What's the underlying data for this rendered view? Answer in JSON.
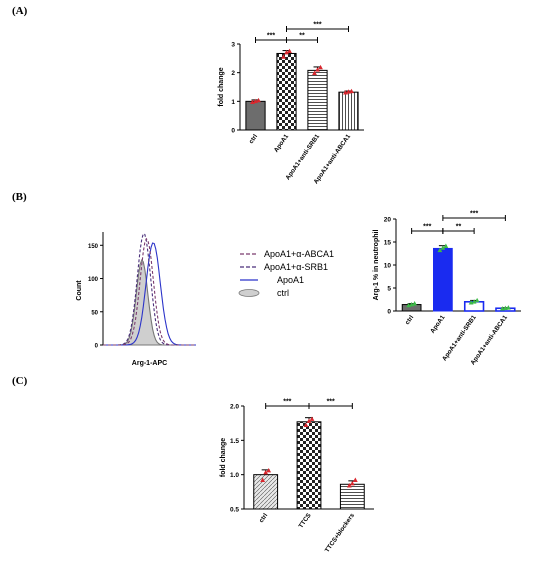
{
  "panels": {
    "a_label": "(A)",
    "b_label": "(B)",
    "c_label": "(C)"
  },
  "colors": {
    "dark_gray": "#6d6d6d",
    "red_points": "#d9272e",
    "blue": "#1a2bf0",
    "green_points": "#3dbb48",
    "purple_dash": "#7a3a6e",
    "dark_purple_dash": "#4a2f7a",
    "line_blue": "#2b33c9",
    "ctrl_fill": "#cfcfcf"
  },
  "chart_data": [
    {
      "id": "A",
      "type": "bar",
      "categories": [
        "ctrl",
        "ApoA1",
        "ApoA1+anti-SRB1",
        "ApoA1+anti-ABCA1"
      ],
      "values": [
        1.0,
        2.67,
        2.08,
        1.32
      ],
      "errors": [
        0.05,
        0.1,
        0.12,
        0.04
      ],
      "points": [
        [
          0.97,
          1.0,
          1.03
        ],
        [
          2.55,
          2.7,
          2.75
        ],
        [
          1.98,
          2.1,
          2.18
        ],
        [
          1.3,
          1.33,
          1.35
        ]
      ],
      "patterns": [
        "dark",
        "checker",
        "hlines",
        "vlines"
      ],
      "ylabel": "fold change",
      "ylim": [
        0,
        3
      ],
      "yticks": [
        "0",
        "1",
        "2",
        "3"
      ],
      "significance": [
        {
          "from": 0,
          "to": 1,
          "label": "***",
          "row": 0
        },
        {
          "from": 1,
          "to": 2,
          "label": "**",
          "row": 0
        },
        {
          "from": 1,
          "to": 3,
          "label": "***",
          "row": 1
        }
      ],
      "grid": false
    },
    {
      "id": "B-histogram",
      "type": "histogram",
      "xlabel": "Arg-1-APC",
      "ylabel": "Count",
      "ylim": [
        0,
        170
      ],
      "yticks": [
        "0",
        "50",
        "100",
        "150"
      ],
      "legend": [
        "ApoA1+α-ABCA1",
        "ApoA1+α-SRB1",
        "ApoA1",
        "ctrl"
      ],
      "series": [
        {
          "name": "ctrl",
          "peak_x": 0.42,
          "peak_y": 128,
          "width": 0.13
        },
        {
          "name": "ApoA1",
          "peak_x": 0.54,
          "peak_y": 154,
          "width": 0.16
        },
        {
          "name": "ApoA1+α-SRB1",
          "peak_x": 0.44,
          "peak_y": 168,
          "width": 0.15
        },
        {
          "name": "ApoA1+α-ABCA1",
          "peak_x": 0.47,
          "peak_y": 160,
          "width": 0.15
        }
      ]
    },
    {
      "id": "B",
      "type": "bar",
      "categories": [
        "ctrl",
        "ApoA1",
        "ApoA1+anti-SRB1",
        "ApoA1+anti-ABCA1"
      ],
      "values": [
        1.4,
        13.6,
        2.0,
        0.6
      ],
      "errors": [
        0.2,
        0.6,
        0.3,
        0.1
      ],
      "points": [
        [
          1.2,
          1.4,
          1.6
        ],
        [
          13.2,
          13.7,
          14.1
        ],
        [
          1.8,
          2.0,
          2.3
        ],
        [
          0.5,
          0.6,
          0.7
        ]
      ],
      "patterns": [
        "dark",
        "blue",
        "white-blue",
        "white-blue"
      ],
      "ylabel": "Arg-1 % in neutrophil",
      "ylim": [
        0,
        20
      ],
      "yticks": [
        "0",
        "5",
        "10",
        "15",
        "20"
      ],
      "significance": [
        {
          "from": 0,
          "to": 1,
          "label": "***",
          "row": 0
        },
        {
          "from": 1,
          "to": 2,
          "label": "**",
          "row": 0
        },
        {
          "from": 1,
          "to": 3,
          "label": "***",
          "row": 1
        }
      ],
      "grid": false
    },
    {
      "id": "C",
      "type": "bar",
      "categories": [
        "ctrl",
        "TTCS",
        "TTCS+blockers"
      ],
      "values": [
        1.0,
        1.77,
        0.86
      ],
      "errors": [
        0.07,
        0.06,
        0.05
      ],
      "points": [
        [
          0.92,
          1.03,
          1.06
        ],
        [
          1.72,
          1.78,
          1.81
        ],
        [
          0.84,
          0.87,
          0.92
        ]
      ],
      "patterns": [
        "hatch",
        "checker",
        "hlines"
      ],
      "ylabel": "fold change",
      "ylim": [
        0.5,
        2.0
      ],
      "yticks": [
        "0.5",
        "1.0",
        "1.5",
        "2.0"
      ],
      "significance": [
        {
          "from": 0,
          "to": 1,
          "label": "***",
          "row": 0
        },
        {
          "from": 1,
          "to": 2,
          "label": "***",
          "row": 0
        }
      ],
      "grid": false
    }
  ]
}
